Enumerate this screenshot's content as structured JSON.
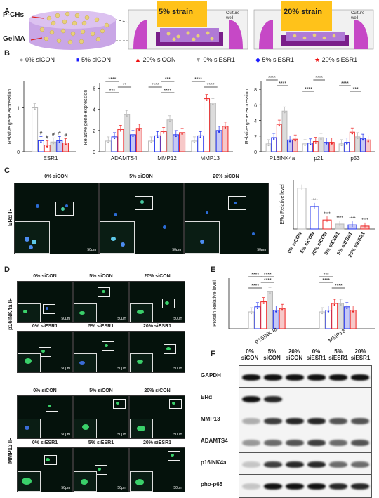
{
  "panels": {
    "a": "A",
    "b": "B",
    "c": "C",
    "d": "D",
    "e": "E",
    "f": "F"
  },
  "panel_a": {
    "pchs_label": "P-CHs",
    "gelma_label": "GelMA",
    "strain5": "5% strain",
    "strain20": "20% strain",
    "culture_well": "Culture well"
  },
  "legend": [
    {
      "name": "0% siCON",
      "color": "#a0a0a0",
      "marker": "circle"
    },
    {
      "name": "5% siCON",
      "color": "#1a1aff",
      "marker": "square"
    },
    {
      "name": "20% siCON",
      "color": "#ee1111",
      "marker": "triangle"
    },
    {
      "name": "0% siESR1",
      "color": "#a0a0a0",
      "marker": "triangle-down"
    },
    {
      "name": "5% siESR1",
      "color": "#1a1aff",
      "marker": "diamond"
    },
    {
      "name": "20% siESR1",
      "color": "#ee1111",
      "marker": "star"
    }
  ],
  "colors": {
    "grey": "#b8b8b8",
    "blue": "#2233ee",
    "red": "#ee2222",
    "fill_grey": "#dcdcdc",
    "fill_blue": "#c5c8f5",
    "fill_red": "#f7c8c8"
  },
  "chart_data": [
    {
      "type": "bar",
      "ylabel": "Relative gene expression",
      "ylim": [
        0,
        1.6
      ],
      "yticks": [
        "0",
        "1"
      ],
      "categories": [
        "ESR1"
      ],
      "groups": [
        [
          1.0,
          0.25,
          0.15,
          0.22,
          0.25,
          0.2
        ]
      ],
      "annotations": [
        "#",
        "#",
        "#",
        "#",
        "#"
      ]
    },
    {
      "type": "bar",
      "ylabel": "Relative gene expression",
      "ylim": [
        0,
        6.5
      ],
      "yticks": [
        "0",
        "2",
        "4",
        "6"
      ],
      "categories": [
        "ADAMTS4",
        "MMP12",
        "MMP13"
      ],
      "groups": [
        [
          1.0,
          1.4,
          2.1,
          3.5,
          1.6,
          2.2
        ],
        [
          1.0,
          1.5,
          1.9,
          3.0,
          1.6,
          1.8
        ],
        [
          1.0,
          1.5,
          5.0,
          4.6,
          2.0,
          2.4
        ]
      ],
      "annotations": [
        "****",
        "**",
        "***",
        "***",
        "****",
        "****",
        "****",
        "****"
      ]
    },
    {
      "type": "bar",
      "ylabel": "Relative gene expression",
      "ylim": [
        0,
        9
      ],
      "yticks": [
        "0",
        "2",
        "4",
        "6",
        "8"
      ],
      "categories": [
        "P16INK4a",
        "p21",
        "p53"
      ],
      "groups": [
        [
          1.0,
          1.8,
          3.5,
          5.2,
          1.5,
          1.6
        ],
        [
          1.0,
          1.1,
          1.3,
          1.8,
          1.2,
          1.2
        ],
        [
          1.0,
          1.2,
          2.5,
          1.9,
          1.7,
          1.5
        ]
      ],
      "annotations": [
        "****",
        "****",
        "****",
        "****",
        "****",
        "***"
      ]
    },
    {
      "type": "bar",
      "ylabel": "ERα Relative level",
      "ylim": [
        0,
        1.2
      ],
      "categories": [
        "0% siCON",
        "5% siCON",
        "20% siCON",
        "0% siESR1",
        "5% siESR1",
        "20% siESR1"
      ],
      "values": [
        1.0,
        0.55,
        0.22,
        0.12,
        0.1,
        0.07
      ],
      "annotations": [
        "****",
        "****",
        "****",
        "****",
        "****"
      ]
    },
    {
      "type": "bar",
      "ylabel": "Protein Relative level",
      "ylim": [
        0,
        3
      ],
      "categories": [
        "P16INK4a",
        "MMP13"
      ],
      "groups": [
        [
          1.0,
          1.3,
          1.6,
          2.2,
          1.1,
          1.2
        ],
        [
          1.0,
          1.1,
          1.5,
          1.5,
          1.3,
          1.1
        ]
      ],
      "annotations": [
        "****",
        "****",
        "****",
        "****",
        "****",
        "****",
        "***"
      ]
    }
  ],
  "panel_c": {
    "titles": [
      "0% siCON",
      "5% siCON",
      "20% siCON"
    ],
    "side_label": "ERα IF",
    "scale": "50μm"
  },
  "panel_d": {
    "p16_label": "p16INK4a IF",
    "mmp13_label": "MMP13 IF",
    "row_titles_con": [
      "0% siCON",
      "5% siCON",
      "20% siCON"
    ],
    "row_titles_esr": [
      "0% siESR1",
      "5% siESR1",
      "20% siESR1"
    ],
    "scale": "50μm"
  },
  "panel_f": {
    "columns": [
      "0% siCON",
      "5% siCON",
      "20% siCON",
      "0% siESR1",
      "5% siESR1",
      "20% siESR1"
    ],
    "rows": [
      "GAPDH",
      "ERα",
      "MMP13",
      "ADAMTS4",
      "p16INK4a",
      "pho-p65"
    ]
  }
}
